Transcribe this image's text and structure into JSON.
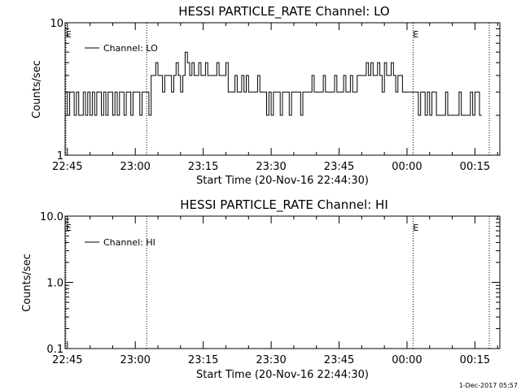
{
  "chart_data": [
    {
      "type": "line",
      "title": "HESSI PARTICLE_RATE Channel: LO",
      "xlabel": "Start Time (20-Nov-16 22:44:30)",
      "ylabel": "Counts/sec",
      "yscale": "log",
      "ylim": [
        1,
        10
      ],
      "ytick_labels": [
        "1",
        "10"
      ],
      "xlim_minutes_from_start": [
        0,
        96
      ],
      "xtick_labels": [
        "22:45",
        "23:00",
        "23:15",
        "23:30",
        "23:45",
        "00:00",
        "00:15"
      ],
      "legend": {
        "placement": "top-left",
        "entries": [
          "Channel: LO"
        ]
      },
      "event_markers": [
        {
          "label": "E",
          "time": "22:44:40"
        },
        {
          "label": "",
          "time": "23:02:30"
        },
        {
          "label": "E",
          "time": "00:01:20"
        },
        {
          "label": "",
          "time": "00:18:10"
        }
      ],
      "series": [
        {
          "name": "Channel: LO",
          "values": [
            [
              0,
              3
            ],
            [
              0.5,
              2
            ],
            [
              1,
              3
            ],
            [
              1.5,
              3
            ],
            [
              2,
              2
            ],
            [
              2.5,
              3
            ],
            [
              3,
              2
            ],
            [
              3.5,
              2
            ],
            [
              4,
              3
            ],
            [
              4.5,
              2
            ],
            [
              5,
              3
            ],
            [
              5.5,
              2
            ],
            [
              6,
              3
            ],
            [
              6.5,
              2
            ],
            [
              7,
              3
            ],
            [
              7.5,
              3
            ],
            [
              8,
              2
            ],
            [
              8.5,
              3
            ],
            [
              9,
              2
            ],
            [
              9.5,
              3
            ],
            [
              10,
              3
            ],
            [
              10.5,
              2
            ],
            [
              11,
              3
            ],
            [
              11.5,
              2
            ],
            [
              12,
              3
            ],
            [
              12.5,
              3
            ],
            [
              13,
              2
            ],
            [
              13.5,
              3
            ],
            [
              14,
              3
            ],
            [
              14.5,
              2
            ],
            [
              15,
              3
            ],
            [
              15.5,
              3
            ],
            [
              16,
              3
            ],
            [
              16.5,
              2
            ],
            [
              17,
              3
            ],
            [
              17.5,
              3
            ],
            [
              18,
              3
            ],
            [
              18.5,
              2
            ],
            [
              19,
              4
            ],
            [
              19.5,
              4
            ],
            [
              20,
              5
            ],
            [
              20.5,
              4
            ],
            [
              21,
              4
            ],
            [
              21.5,
              3
            ],
            [
              22,
              4
            ],
            [
              22.5,
              4
            ],
            [
              23,
              4
            ],
            [
              23.5,
              3
            ],
            [
              24,
              4
            ],
            [
              24.5,
              5
            ],
            [
              25,
              4
            ],
            [
              25.5,
              3
            ],
            [
              26,
              4
            ],
            [
              26.5,
              6
            ],
            [
              27,
              5
            ],
            [
              27.5,
              4
            ],
            [
              28,
              5
            ],
            [
              28.5,
              4
            ],
            [
              29,
              4
            ],
            [
              29.5,
              5
            ],
            [
              30,
              4
            ],
            [
              30.5,
              4
            ],
            [
              31,
              5
            ],
            [
              31.5,
              4
            ],
            [
              32,
              4
            ],
            [
              32.5,
              4
            ],
            [
              33,
              4
            ],
            [
              33.5,
              5
            ],
            [
              34,
              4
            ],
            [
              34.5,
              4
            ],
            [
              35,
              4
            ],
            [
              35.5,
              5
            ],
            [
              36,
              3
            ],
            [
              36.5,
              3
            ],
            [
              37,
              3
            ],
            [
              37.5,
              4
            ],
            [
              38,
              3
            ],
            [
              38.5,
              3
            ],
            [
              39,
              4
            ],
            [
              39.5,
              3
            ],
            [
              40,
              4
            ],
            [
              40.5,
              3
            ],
            [
              41,
              3
            ],
            [
              41.5,
              3
            ],
            [
              42,
              3
            ],
            [
              42.5,
              4
            ],
            [
              43,
              3
            ],
            [
              43.5,
              3
            ],
            [
              44,
              3
            ],
            [
              44.5,
              2
            ],
            [
              45,
              3
            ],
            [
              45.5,
              2
            ],
            [
              46,
              3
            ],
            [
              46.5,
              3
            ],
            [
              47,
              3
            ],
            [
              47.5,
              2
            ],
            [
              48,
              3
            ],
            [
              48.5,
              3
            ],
            [
              49,
              3
            ],
            [
              49.5,
              2
            ],
            [
              50,
              3
            ],
            [
              50.5,
              3
            ],
            [
              51,
              3
            ],
            [
              51.5,
              3
            ],
            [
              52,
              2
            ],
            [
              52.5,
              3
            ],
            [
              53,
              3
            ],
            [
              53.5,
              3
            ],
            [
              54,
              3
            ],
            [
              54.5,
              4
            ],
            [
              55,
              3
            ],
            [
              55.5,
              3
            ],
            [
              56,
              3
            ],
            [
              56.5,
              3
            ],
            [
              57,
              4
            ],
            [
              57.5,
              3
            ],
            [
              58,
              3
            ],
            [
              58.5,
              3
            ],
            [
              59,
              3
            ],
            [
              59.5,
              4
            ],
            [
              60,
              3
            ],
            [
              60.5,
              3
            ],
            [
              61,
              3
            ],
            [
              61.5,
              4
            ],
            [
              62,
              3
            ],
            [
              62.5,
              3
            ],
            [
              63,
              4
            ],
            [
              63.5,
              3
            ],
            [
              64,
              3
            ],
            [
              64.5,
              4
            ],
            [
              65,
              4
            ],
            [
              65.5,
              4
            ],
            [
              66,
              4
            ],
            [
              66.5,
              5
            ],
            [
              67,
              4
            ],
            [
              67.5,
              5
            ],
            [
              68,
              4
            ],
            [
              68.5,
              4
            ],
            [
              69,
              5
            ],
            [
              69.5,
              4
            ],
            [
              70,
              3
            ],
            [
              70.5,
              5
            ],
            [
              71,
              4
            ],
            [
              71.5,
              4
            ],
            [
              72,
              5
            ],
            [
              72.5,
              4
            ],
            [
              73,
              3
            ],
            [
              73.5,
              4
            ],
            [
              74,
              4
            ],
            [
              74.5,
              3
            ],
            [
              75,
              3
            ],
            [
              75.5,
              3
            ],
            [
              76,
              3
            ],
            [
              76.5,
              3
            ],
            [
              77,
              3
            ],
            [
              77.5,
              3
            ],
            [
              78,
              2
            ],
            [
              78.5,
              3
            ],
            [
              79,
              3
            ],
            [
              79.5,
              2
            ],
            [
              80,
              3
            ],
            [
              80.5,
              2
            ],
            [
              81,
              3
            ],
            [
              81.5,
              3
            ],
            [
              82,
              2
            ],
            [
              82.5,
              2
            ],
            [
              83,
              2
            ],
            [
              83.5,
              2
            ],
            [
              84,
              3
            ],
            [
              84.5,
              2
            ],
            [
              85,
              2
            ],
            [
              85.5,
              2
            ],
            [
              86,
              2
            ],
            [
              86.5,
              2
            ],
            [
              87,
              3
            ],
            [
              87.5,
              2
            ],
            [
              88,
              2
            ],
            [
              88.5,
              2
            ],
            [
              89,
              2
            ],
            [
              89.5,
              3
            ],
            [
              90,
              2
            ],
            [
              90.5,
              3
            ],
            [
              91,
              3
            ],
            [
              91.5,
              2
            ]
          ]
        }
      ]
    },
    {
      "type": "line",
      "title": "HESSI PARTICLE_RATE Channel: HI",
      "xlabel": "Start Time (20-Nov-16 22:44:30)",
      "ylabel": "Counts/sec",
      "yscale": "log",
      "ylim": [
        0.1,
        10
      ],
      "ytick_labels": [
        "0.1",
        "1.0",
        "10.0"
      ],
      "xlim_minutes_from_start": [
        0,
        96
      ],
      "xtick_labels": [
        "22:45",
        "23:00",
        "23:15",
        "23:30",
        "23:45",
        "00:00",
        "00:15"
      ],
      "legend": {
        "placement": "top-left",
        "entries": [
          "Channel: HI"
        ]
      },
      "event_markers": [
        {
          "label": "E",
          "time": "22:44:40"
        },
        {
          "label": "",
          "time": "23:02:30"
        },
        {
          "label": "E",
          "time": "00:01:20"
        },
        {
          "label": "",
          "time": "00:18:10"
        }
      ],
      "series": [
        {
          "name": "Channel: HI",
          "values": []
        }
      ]
    }
  ],
  "footer": {
    "timestamp": "1-Dec-2017 05:57"
  }
}
